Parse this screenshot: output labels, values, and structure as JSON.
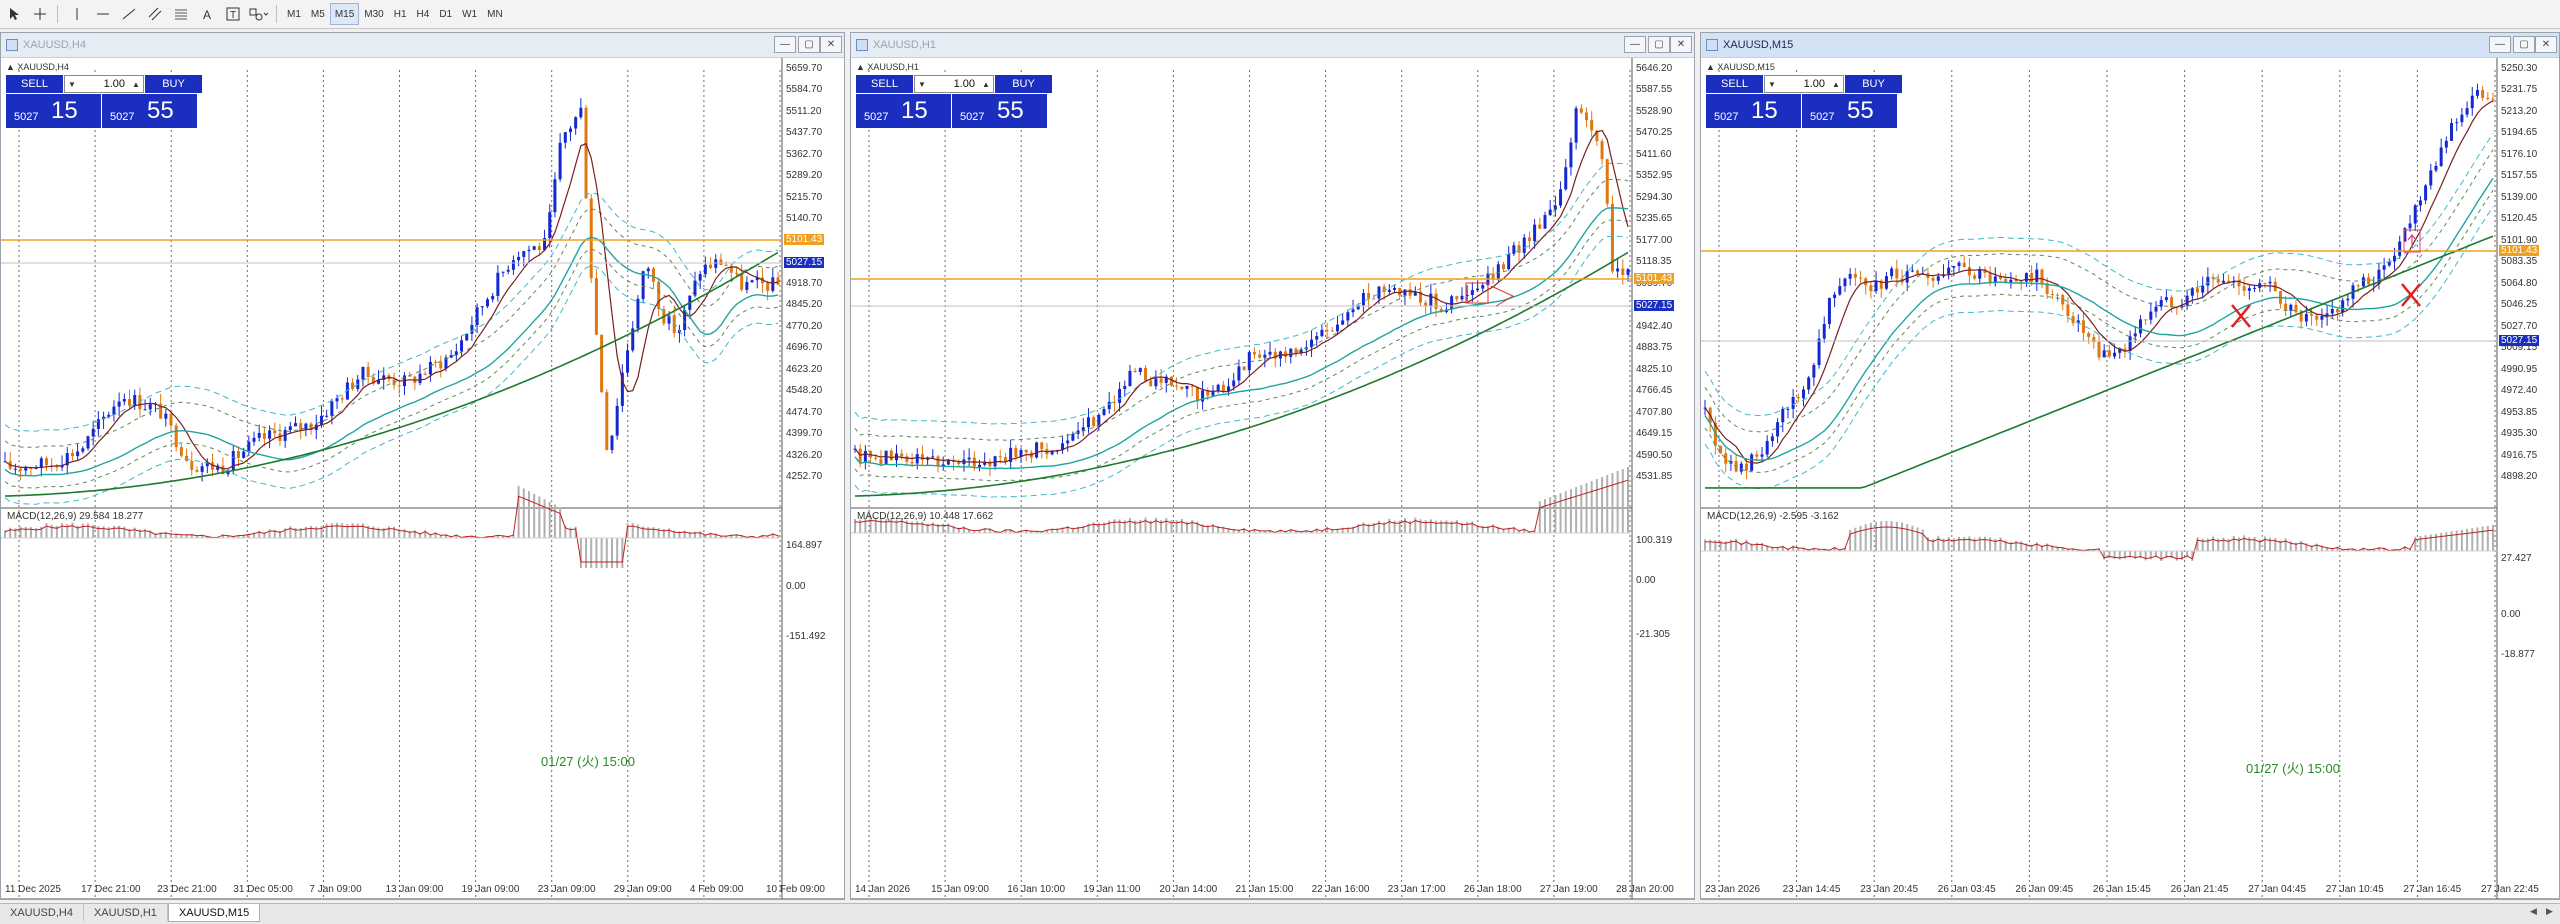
{
  "toolbar": {
    "timeframes": [
      "M1",
      "M5",
      "M15",
      "M30",
      "H1",
      "H4",
      "D1",
      "W1",
      "MN"
    ],
    "active_timeframe": "M15"
  },
  "trade_panel": {
    "sell_label": "SELL",
    "buy_label": "BUY",
    "lot": "1.00",
    "bid_small": "5027",
    "bid_large": "15",
    "ask_small": "5027",
    "ask_large": "55"
  },
  "windows": [
    {
      "title": "XAUUSD,H4",
      "symbol_label": "XAUUSD,H4",
      "active": false,
      "macd_label": "MACD(12,26,9) 29.584 18.277",
      "price_labels": [
        "5659.70",
        "5584.70",
        "5511.20",
        "5437.70",
        "5362.70",
        "5289.20",
        "5215.70",
        "5140.70",
        "5067.20",
        "4992.20",
        "4918.70",
        "4845.20",
        "4770.20",
        "4696.70",
        "4623.20",
        "4548.20",
        "4474.70",
        "4399.70",
        "4326.20",
        "4252.70"
      ],
      "macd_levels": [
        "164.897",
        "0.00",
        "-151.492"
      ],
      "time_labels": [
        "11 Dec 2025",
        "17 Dec 21:00",
        "23 Dec 21:00",
        "31 Dec 05:00",
        "7 Jan 09:00",
        "13 Jan 09:00",
        "19 Jan 09:00",
        "23 Jan 09:00",
        "29 Jan 09:00",
        "4 Feb 09:00",
        "10 Feb 09:00"
      ],
      "annotation": "01/27 (火) 15:00",
      "hline_tag": "5101.43",
      "bid_tag": "5027.15"
    },
    {
      "title": "XAUUSD,H1",
      "symbol_label": "XAUUSD,H1",
      "active": false,
      "macd_label": "MACD(12,26,9) 10.448 17.662",
      "price_labels": [
        "5646.20",
        "5587.55",
        "5528.90",
        "5470.25",
        "5411.60",
        "5352.95",
        "5294.30",
        "5235.65",
        "5177.00",
        "5118.35",
        "5059.70",
        "5001.05",
        "4942.40",
        "4883.75",
        "4825.10",
        "4766.45",
        "4707.80",
        "4649.15",
        "4590.50",
        "4531.85"
      ],
      "macd_levels": [
        "100.319",
        "0.00",
        "-21.305"
      ],
      "time_labels": [
        "14 Jan 2026",
        "15 Jan 09:00",
        "16 Jan 10:00",
        "19 Jan 11:00",
        "20 Jan 14:00",
        "21 Jan 15:00",
        "22 Jan 16:00",
        "23 Jan 17:00",
        "26 Jan 18:00",
        "27 Jan 19:00",
        "28 Jan 20:00"
      ],
      "annotation": "",
      "hline_tag": "5101.43",
      "bid_tag": "5027.15"
    },
    {
      "title": "XAUUSD,M15",
      "symbol_label": "XAUUSD,M15",
      "active": true,
      "macd_label": "MACD(12,26,9) -2.595 -3.162",
      "price_labels": [
        "5250.30",
        "5231.75",
        "5213.20",
        "5194.65",
        "5176.10",
        "5157.55",
        "5139.00",
        "5120.45",
        "5101.90",
        "5083.35",
        "5064.80",
        "5046.25",
        "5027.70",
        "5009.15",
        "4990.95",
        "4972.40",
        "4953.85",
        "4935.30",
        "4916.75",
        "4898.20"
      ],
      "macd_levels": [
        "27.427",
        "0.00",
        "-18.877"
      ],
      "time_labels": [
        "23 Jan 2026",
        "23 Jan 14:45",
        "23 Jan 20:45",
        "26 Jan 03:45",
        "26 Jan 09:45",
        "26 Jan 15:45",
        "26 Jan 21:45",
        "27 Jan 04:45",
        "27 Jan 10:45",
        "27 Jan 16:45",
        "27 Jan 22:45"
      ],
      "annotation": "01/27 (火) 15:00",
      "hline_tag": "5101.43",
      "bid_tag": "5027.15"
    }
  ],
  "tabs": [
    "XAUUSD,H4",
    "XAUUSD,H1",
    "XAUUSD,M15"
  ],
  "active_tab": "XAUUSD,M15",
  "colors": {
    "bull": "#1428d2",
    "bear": "#e07810",
    "ma_fast": "#7a1f1f",
    "ma_mid": "#1fa5a0",
    "ma_slow": "#1f7a2e",
    "bands": "#3fb8c8",
    "hline": "#f0a020",
    "panel_blue": "#1a2fc0"
  }
}
